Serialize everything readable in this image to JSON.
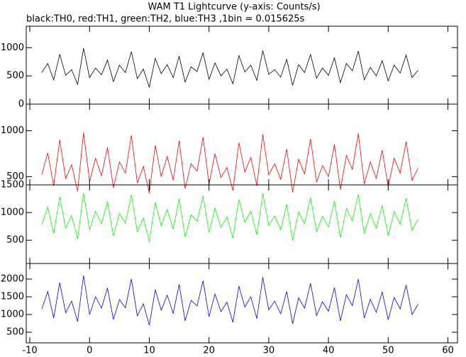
{
  "chart_data": [
    {
      "type": "line",
      "title": "WAM T1 Lightcurve (y-axis: Counts/s)",
      "subtitle": "black:TH0, red:TH1, green:TH2, blue:TH3 ,1bin = 0.015625s",
      "x": [
        -8,
        -7,
        -6,
        -5,
        -4,
        -3,
        -2,
        -1,
        0,
        1,
        2,
        3,
        4,
        5,
        6,
        7,
        8,
        9,
        10,
        11,
        12,
        13,
        14,
        15,
        16,
        17,
        18,
        19,
        20,
        21,
        22,
        23,
        24,
        25,
        26,
        27,
        28,
        29,
        30,
        31,
        32,
        33,
        34,
        35,
        36,
        37,
        38,
        39,
        40,
        41,
        42,
        43,
        44,
        45,
        46,
        47,
        48,
        49,
        50,
        51,
        52,
        53,
        54,
        55
      ],
      "values": [
        560,
        720,
        430,
        880,
        510,
        610,
        350,
        990,
        470,
        640,
        520,
        780,
        400,
        690,
        560,
        930,
        450,
        620,
        300,
        810,
        540,
        700,
        470,
        850,
        390,
        660,
        580,
        910,
        440,
        730,
        500,
        620,
        360,
        860,
        570,
        690,
        420,
        950,
        530,
        610,
        480,
        790,
        330,
        700,
        560,
        880,
        460,
        640,
        510,
        820,
        380,
        720,
        590,
        940,
        430,
        650,
        500,
        770,
        410,
        690,
        550,
        870,
        470,
        600
      ],
      "color": "#000000",
      "xlim": [
        -10.6,
        61.6
      ],
      "ylim": [
        0,
        1380
      ],
      "yticks": [
        0,
        500,
        1000
      ]
    },
    {
      "type": "line",
      "x": [
        -8,
        -7,
        -6,
        -5,
        -4,
        -3,
        -2,
        -1,
        0,
        1,
        2,
        3,
        4,
        5,
        6,
        7,
        8,
        9,
        10,
        11,
        12,
        13,
        14,
        15,
        16,
        17,
        18,
        19,
        20,
        21,
        22,
        23,
        24,
        25,
        26,
        27,
        28,
        29,
        30,
        31,
        32,
        33,
        34,
        35,
        36,
        37,
        38,
        39,
        40,
        41,
        42,
        43,
        44,
        45,
        46,
        47,
        48,
        49,
        50,
        51,
        52,
        53,
        54,
        55
      ],
      "values": [
        520,
        760,
        400,
        900,
        480,
        630,
        340,
        980,
        450,
        700,
        510,
        820,
        380,
        660,
        540,
        950,
        430,
        610,
        320,
        840,
        500,
        720,
        460,
        890,
        370,
        640,
        560,
        930,
        420,
        750,
        490,
        600,
        350,
        870,
        550,
        710,
        400,
        960,
        520,
        640,
        470,
        800,
        330,
        690,
        530,
        910,
        440,
        620,
        500,
        850,
        360,
        730,
        580,
        970,
        420,
        660,
        480,
        790,
        390,
        700,
        540,
        880,
        460,
        590
      ],
      "color": "#ff0000",
      "xlim": [
        -10.6,
        61.6
      ],
      "ylim": [
        410,
        1290
      ],
      "yticks": [
        500,
        1000
      ]
    },
    {
      "type": "line",
      "x": [
        -8,
        -7,
        -6,
        -5,
        -4,
        -3,
        -2,
        -1,
        0,
        1,
        2,
        3,
        4,
        5,
        6,
        7,
        8,
        9,
        10,
        11,
        12,
        13,
        14,
        15,
        16,
        17,
        18,
        19,
        20,
        21,
        22,
        23,
        24,
        25,
        26,
        27,
        28,
        29,
        30,
        31,
        32,
        33,
        34,
        35,
        36,
        37,
        38,
        39,
        40,
        41,
        42,
        43,
        44,
        45,
        46,
        47,
        48,
        49,
        50,
        51,
        52,
        53,
        54,
        55
      ],
      "values": [
        780,
        1100,
        620,
        1280,
        720,
        950,
        520,
        1350,
        690,
        1020,
        800,
        1200,
        580,
        980,
        810,
        1320,
        650,
        900,
        480,
        1180,
        760,
        1060,
        700,
        1250,
        560,
        960,
        840,
        1300,
        640,
        1080,
        730,
        920,
        540,
        1240,
        820,
        1030,
        600,
        1340,
        770,
        940,
        690,
        1150,
        500,
        1010,
        800,
        1270,
        660,
        930,
        740,
        1210,
        550,
        1070,
        850,
        1330,
        620,
        980,
        720,
        1130,
        580,
        1020,
        790,
        1260,
        680,
        880
      ],
      "color": "#00ff00",
      "xlim": [
        -10.6,
        61.6
      ],
      "ylim": [
        80,
        1500
      ],
      "yticks": [
        500,
        1000,
        1500
      ]
    },
    {
      "type": "line",
      "x": [
        -8,
        -7,
        -6,
        -5,
        -4,
        -3,
        -2,
        -1,
        0,
        1,
        2,
        3,
        4,
        5,
        6,
        7,
        8,
        9,
        10,
        11,
        12,
        13,
        14,
        15,
        16,
        17,
        18,
        19,
        20,
        21,
        22,
        23,
        24,
        25,
        26,
        27,
        28,
        29,
        30,
        31,
        32,
        33,
        34,
        35,
        36,
        37,
        38,
        39,
        40,
        41,
        42,
        43,
        44,
        45,
        46,
        47,
        48,
        49,
        50,
        51,
        52,
        53,
        54,
        55
      ],
      "values": [
        1150,
        1650,
        900,
        1900,
        1050,
        1380,
        800,
        2100,
        1000,
        1500,
        1180,
        1750,
        860,
        1420,
        1190,
        2000,
        960,
        1300,
        700,
        1700,
        1120,
        1550,
        1030,
        1850,
        820,
        1400,
        1240,
        1950,
        940,
        1580,
        1080,
        1350,
        780,
        1800,
        1210,
        1500,
        880,
        2050,
        1130,
        1380,
        1020,
        1650,
        740,
        1470,
        1180,
        1880,
        970,
        1360,
        1090,
        1760,
        820,
        1560,
        1250,
        2000,
        900,
        1430,
        1060,
        1640,
        850,
        1480,
        1160,
        1830,
        1000,
        1290
      ],
      "color": "#0000ff",
      "xlim": [
        -10.6,
        61.6
      ],
      "ylim": [
        200,
        2440
      ],
      "yticks": [
        500,
        1000,
        1500,
        2000
      ],
      "xticks": [
        -10,
        0,
        10,
        20,
        30,
        40,
        50,
        60
      ]
    }
  ]
}
